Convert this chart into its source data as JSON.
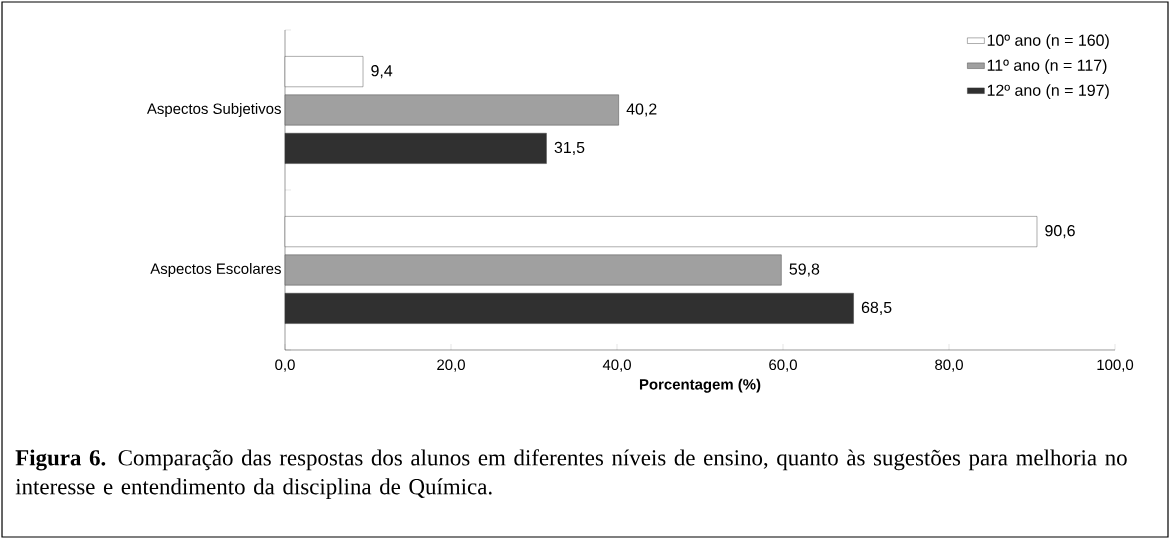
{
  "chart_data": {
    "type": "bar",
    "orientation": "horizontal",
    "categories": [
      "Aspectos Subjetivos",
      "Aspectos Escolares"
    ],
    "series": [
      {
        "name": "10º ano (n = 160)",
        "color": "#ffffff",
        "values": [
          9.4,
          90.6
        ],
        "value_labels": [
          "9,4",
          "90,6"
        ]
      },
      {
        "name": "11º ano (n = 117)",
        "color": "#a0a0a0",
        "values": [
          40.2,
          59.8
        ],
        "value_labels": [
          "40,2",
          "59,8"
        ]
      },
      {
        "name": "12º ano (n = 197)",
        "color": "#303030",
        "values": [
          31.5,
          68.5
        ],
        "value_labels": [
          "31,5",
          "68,5"
        ]
      }
    ],
    "xlim": [
      0,
      100
    ],
    "xticks": [
      {
        "value": 0,
        "label": "0,0"
      },
      {
        "value": 20,
        "label": "20,0"
      },
      {
        "value": 40,
        "label": "40,0"
      },
      {
        "value": 60,
        "label": "60,0"
      },
      {
        "value": 80,
        "label": "80,0"
      },
      {
        "value": 100,
        "label": "100,0"
      }
    ],
    "xlabel": "Porcentagem (%)",
    "legend": "top right",
    "annotations": [
      "**Figura 6.** Comparação das respostas dos alunos em diferentes níveis de ensino, quanto às sugestões para melhoria no interesse e entendimento da disciplina de Química."
    ]
  }
}
